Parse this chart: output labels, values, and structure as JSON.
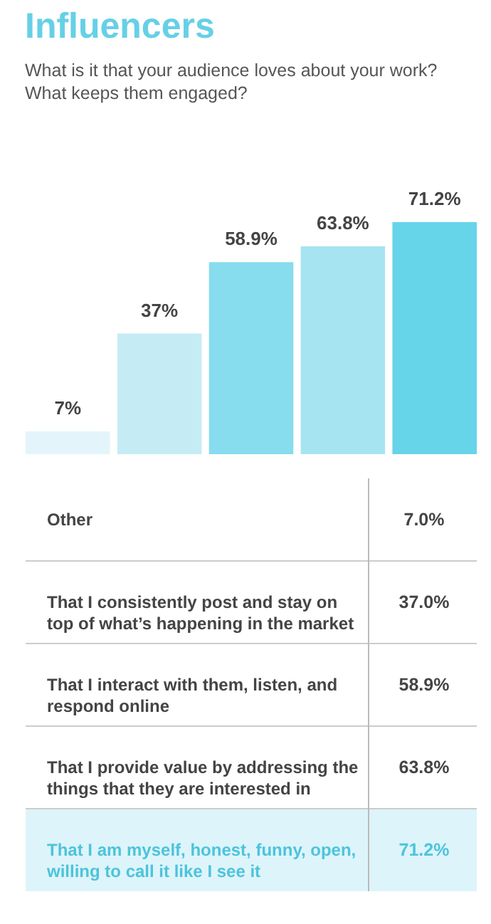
{
  "chart_data": {
    "type": "bar",
    "title": "Influencers",
    "subtitle": "What is it that your audience loves about your work? What keeps them engaged?",
    "categories": [
      null,
      null,
      null,
      null,
      null
    ],
    "values": [
      7,
      37,
      58.9,
      63.8,
      71.2
    ],
    "colors": [
      "#e3f5fa",
      "#c5ecf5",
      "#87dcee",
      "#a6e4f1",
      "#66d4e9"
    ],
    "value_labels": [
      "7%",
      "37%",
      "58.9%",
      "63.8%",
      "71.2%"
    ],
    "annotations": [
      "Other",
      "7.0%",
      "That I consistently post and stay on top of what’s happening in the market",
      "37.0%",
      "That I interact with them, listen, and respond online",
      "58.9%",
      "That I provide value by addressing the things that they are interested in",
      "63.8%",
      "That I am myself, honest, funny, open, willing to call it like I see it",
      "71.2%"
    ],
    "tick_labels": false,
    "legend": false
  }
}
